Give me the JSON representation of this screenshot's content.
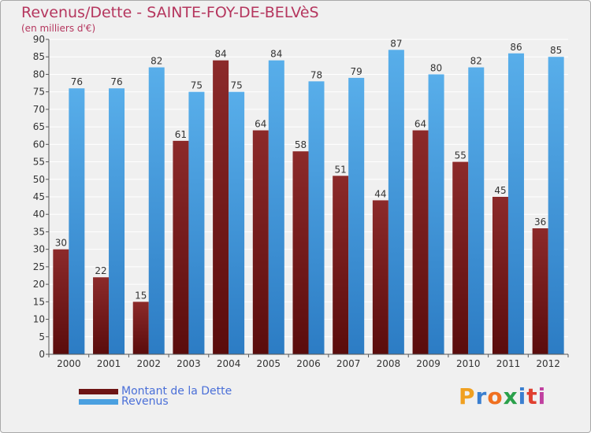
{
  "header": {
    "title": "Revenus/Dette - SAINTE-FOY-DE-BELVèS",
    "subtitle": "(en milliers d'€)"
  },
  "legend": {
    "debt_label": "Montant de la Dette",
    "revenue_label": "Revenus"
  },
  "logo": {
    "letters": [
      "P",
      "r",
      "o",
      "x",
      "i",
      "t",
      "i"
    ],
    "colors": [
      "#f0a020",
      "#3a7fd0",
      "#f07020",
      "#2aa04a",
      "#3a7fd0",
      "#e04030",
      "#c040a0"
    ]
  },
  "colors": {
    "debt": "#7a1a1a",
    "revenue": "#4aa0e0",
    "accent": "#b5365e"
  },
  "chart_data": {
    "type": "bar",
    "categories": [
      "2000",
      "2001",
      "2002",
      "2003",
      "2004",
      "2005",
      "2006",
      "2007",
      "2008",
      "2009",
      "2010",
      "2011",
      "2012"
    ],
    "series": [
      {
        "name": "Montant de la Dette",
        "values": [
          30,
          22,
          15,
          61,
          84,
          64,
          58,
          51,
          44,
          64,
          55,
          45,
          36
        ]
      },
      {
        "name": "Revenus",
        "values": [
          76,
          76,
          82,
          75,
          75,
          84,
          78,
          79,
          87,
          80,
          82,
          86,
          85
        ]
      }
    ],
    "ylim": [
      0,
      90
    ],
    "yticks": [
      0,
      5,
      10,
      15,
      20,
      25,
      30,
      35,
      40,
      45,
      50,
      55,
      60,
      65,
      70,
      75,
      80,
      85,
      90
    ],
    "grid": true,
    "legend_position": "bottom-left"
  }
}
